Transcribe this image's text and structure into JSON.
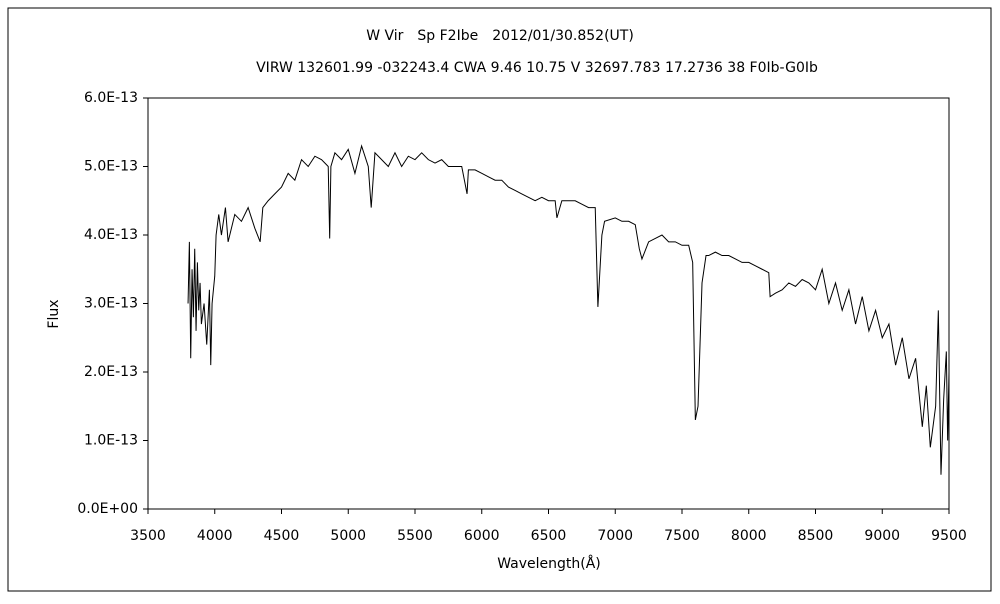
{
  "chart_data": {
    "type": "line",
    "title": "W Vir　Sp F2Ibe　2012/01/30.852(UT)",
    "subtitle": "VIRW 132601.99 -032243.4 CWA 9.46 10.75 V 32697.783 17.2736 38 F0Ib-G0Ib",
    "xlabel": "Wavelength(Å)",
    "ylabel": "Flux",
    "xlim": [
      3500,
      9500
    ],
    "xticks": [
      3500,
      4000,
      4500,
      5000,
      5500,
      6000,
      6500,
      7000,
      7500,
      8000,
      8500,
      9000,
      9500
    ],
    "ylim": [
      0,
      6e-13
    ],
    "yticks": [
      {
        "value": 0,
        "label": "0.0E+00"
      },
      {
        "value": 1e-13,
        "label": "1.0E-13"
      },
      {
        "value": 2e-13,
        "label": "2.0E-13"
      },
      {
        "value": 3e-13,
        "label": "3.0E-13"
      },
      {
        "value": 4e-13,
        "label": "4.0E-13"
      },
      {
        "value": 5e-13,
        "label": "5.0E-13"
      },
      {
        "value": 6e-13,
        "label": "6.0E-13"
      }
    ],
    "color": "#000000",
    "x": [
      3800,
      3810,
      3820,
      3830,
      3840,
      3850,
      3860,
      3870,
      3880,
      3890,
      3900,
      3920,
      3940,
      3960,
      3970,
      3980,
      4000,
      4010,
      4030,
      4050,
      4080,
      4100,
      4150,
      4200,
      4250,
      4300,
      4340,
      4360,
      4400,
      4450,
      4500,
      4550,
      4600,
      4650,
      4700,
      4750,
      4800,
      4850,
      4861,
      4870,
      4900,
      4950,
      5000,
      5050,
      5100,
      5150,
      5172,
      5200,
      5250,
      5300,
      5350,
      5400,
      5450,
      5500,
      5550,
      5600,
      5650,
      5700,
      5750,
      5800,
      5850,
      5890,
      5900,
      5950,
      6000,
      6050,
      6100,
      6150,
      6200,
      6250,
      6300,
      6350,
      6400,
      6450,
      6500,
      6550,
      6563,
      6600,
      6650,
      6700,
      6750,
      6800,
      6850,
      6870,
      6900,
      6920,
      7000,
      7050,
      7100,
      7150,
      7180,
      7200,
      7250,
      7300,
      7350,
      7400,
      7450,
      7500,
      7550,
      7580,
      7600,
      7620,
      7650,
      7680,
      7700,
      7750,
      7800,
      7850,
      7900,
      7950,
      8000,
      8050,
      8100,
      8150,
      8160,
      8200,
      8250,
      8300,
      8350,
      8400,
      8450,
      8500,
      8550,
      8600,
      8650,
      8700,
      8750,
      8800,
      8850,
      8900,
      8950,
      9000,
      9050,
      9100,
      9150,
      9200,
      9250,
      9300,
      9330,
      9360,
      9400,
      9420,
      9440,
      9460,
      9480,
      9490,
      9500
    ],
    "values": [
      3e-13,
      3.9e-13,
      2.2e-13,
      3.5e-13,
      2.8e-13,
      3.8e-13,
      2.6e-13,
      3.6e-13,
      2.9e-13,
      3.3e-13,
      2.7e-13,
      3e-13,
      2.4e-13,
      3.2e-13,
      2.1e-13,
      3e-13,
      3.4e-13,
      4e-13,
      4.3e-13,
      4e-13,
      4.4e-13,
      3.9e-13,
      4.3e-13,
      4.2e-13,
      4.4e-13,
      4.1e-13,
      3.9e-13,
      4.4e-13,
      4.5e-13,
      4.6e-13,
      4.7e-13,
      4.9e-13,
      4.8e-13,
      5.1e-13,
      5e-13,
      5.15e-13,
      5.1e-13,
      5e-13,
      3.95e-13,
      5e-13,
      5.2e-13,
      5.1e-13,
      5.25e-13,
      4.9e-13,
      5.3e-13,
      5e-13,
      4.4e-13,
      5.2e-13,
      5.1e-13,
      5e-13,
      5.2e-13,
      5e-13,
      5.15e-13,
      5.1e-13,
      5.2e-13,
      5.1e-13,
      5.05e-13,
      5.1e-13,
      5e-13,
      5e-13,
      5e-13,
      4.6e-13,
      4.95e-13,
      4.95e-13,
      4.9e-13,
      4.85e-13,
      4.8e-13,
      4.8e-13,
      4.7e-13,
      4.65e-13,
      4.6e-13,
      4.55e-13,
      4.5e-13,
      4.55e-13,
      4.5e-13,
      4.5e-13,
      4.25e-13,
      4.5e-13,
      4.5e-13,
      4.5e-13,
      4.45e-13,
      4.4e-13,
      4.4e-13,
      2.95e-13,
      4e-13,
      4.2e-13,
      4.25e-13,
      4.2e-13,
      4.2e-13,
      4.15e-13,
      3.8e-13,
      3.65e-13,
      3.9e-13,
      3.95e-13,
      4e-13,
      3.9e-13,
      3.9e-13,
      3.85e-13,
      3.85e-13,
      3.6e-13,
      1.3e-13,
      1.5e-13,
      3.3e-13,
      3.7e-13,
      3.7e-13,
      3.75e-13,
      3.7e-13,
      3.7e-13,
      3.65e-13,
      3.6e-13,
      3.6e-13,
      3.55e-13,
      3.5e-13,
      3.45e-13,
      3.1e-13,
      3.15e-13,
      3.2e-13,
      3.3e-13,
      3.25e-13,
      3.35e-13,
      3.3e-13,
      3.2e-13,
      3.5e-13,
      3e-13,
      3.3e-13,
      2.9e-13,
      3.2e-13,
      2.7e-13,
      3.1e-13,
      2.6e-13,
      2.9e-13,
      2.5e-13,
      2.7e-13,
      2.1e-13,
      2.5e-13,
      1.9e-13,
      2.2e-13,
      1.2e-13,
      1.8e-13,
      9e-14,
      1.5e-13,
      2.9e-13,
      5e-14,
      1.6e-13,
      2.3e-13,
      1e-13,
      2e-13
    ]
  }
}
